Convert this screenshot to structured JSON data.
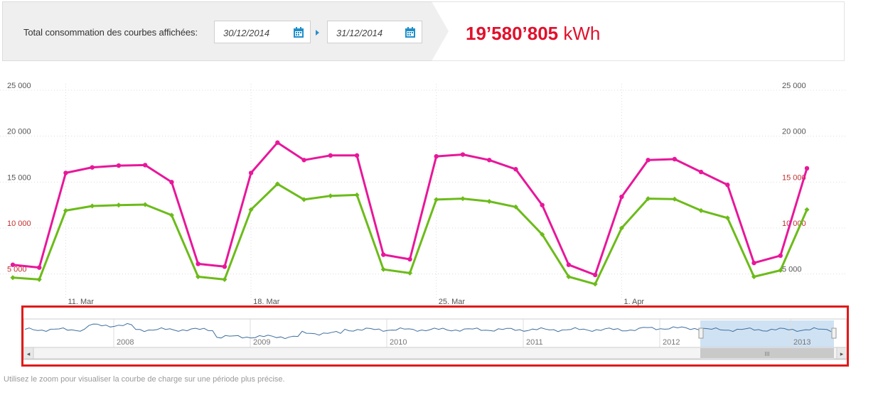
{
  "header": {
    "label": "Total consommation des courbes affichées:",
    "date_from": "30/12/2014",
    "date_to": "31/12/2014",
    "total_value": "19’580’805",
    "total_unit": "kWh",
    "accent_color": "#e1102b"
  },
  "hint": "Utilisez le zoom pour visualiser la courbe de charge sur une période plus précise.",
  "chart_data": {
    "type": "line",
    "title": "",
    "xlabel": "",
    "ylabel": "",
    "ylim": [
      2500,
      25000
    ],
    "yticks_left": [
      "25 000",
      "20 000",
      "15 000",
      "10 000",
      "5 000"
    ],
    "yticks_right": [
      "25 000",
      "20 000",
      "15 000",
      "10 000",
      "5 000"
    ],
    "yticks_values": [
      25000,
      20000,
      15000,
      10000,
      5000
    ],
    "xticks": [
      "11. Mar",
      "18. Mar",
      "25. Mar",
      "1. Apr"
    ],
    "xticks_index": [
      2,
      9,
      16,
      23
    ],
    "grid": true,
    "series": [
      {
        "color": "#e8179a",
        "values": [
          6000,
          5700,
          16000,
          16600,
          16800,
          16850,
          15000,
          6100,
          5800,
          16000,
          19300,
          17400,
          17900,
          17900,
          7100,
          6600,
          17800,
          18000,
          17400,
          16400,
          12500,
          6000,
          4900,
          13400,
          17400,
          17500,
          16100,
          14700,
          6200,
          7000,
          16500
        ]
      },
      {
        "color": "#6cbb1a",
        "values": [
          4600,
          4400,
          11900,
          12400,
          12500,
          12550,
          11400,
          4700,
          4400,
          12000,
          14800,
          13100,
          13500,
          13600,
          5500,
          5100,
          13100,
          13200,
          12900,
          12300,
          9300,
          4700,
          3900,
          10000,
          13200,
          13150,
          11900,
          11100,
          4700,
          5400,
          12000
        ]
      }
    ]
  },
  "navigator": {
    "years": [
      "2008",
      "2009",
      "2010",
      "2011",
      "2012",
      "2013"
    ],
    "series_color": "#3e6e9e",
    "selection_color": "#cfe2f3",
    "scroll_left": "◂",
    "scroll_right": "▸",
    "scroll_grip": "III"
  }
}
